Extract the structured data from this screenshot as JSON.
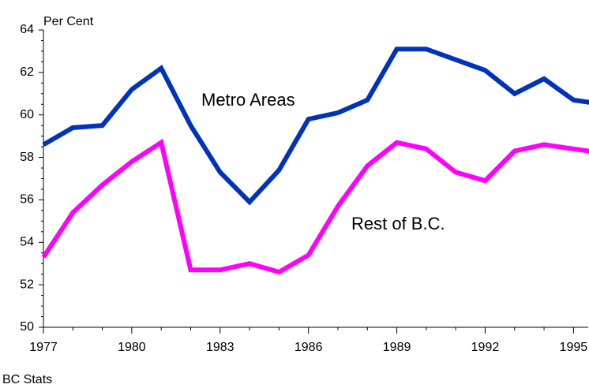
{
  "chart_data": {
    "type": "line",
    "y_label": "Per Cent",
    "source": "BC Stats",
    "x": [
      1977,
      1978,
      1979,
      1980,
      1981,
      1982,
      1983,
      1984,
      1985,
      1986,
      1987,
      1988,
      1989,
      1990,
      1991,
      1992,
      1993,
      1994,
      1995,
      1996
    ],
    "series": [
      {
        "name": "Metro Areas",
        "color": "#0033bb",
        "values": [
          58.6,
          59.4,
          59.5,
          61.2,
          62.2,
          59.5,
          57.3,
          55.9,
          57.4,
          59.8,
          60.1,
          60.7,
          63.1,
          63.1,
          62.6,
          62.1,
          61.0,
          61.7,
          60.7,
          60.5
        ]
      },
      {
        "name": "Rest of B.C.",
        "color": "#ff00ff",
        "values": [
          53.3,
          55.4,
          56.7,
          57.8,
          58.7,
          52.7,
          52.7,
          53.0,
          52.6,
          53.4,
          55.7,
          57.6,
          58.7,
          58.4,
          57.3,
          56.9,
          58.3,
          58.6,
          58.4,
          58.2
        ]
      }
    ],
    "xlim": [
      1977,
      1995.5
    ],
    "xticks": [
      1977,
      1980,
      1983,
      1986,
      1989,
      1992,
      1995
    ],
    "x_minor_ticks": [
      1978,
      1979,
      1981,
      1982,
      1984,
      1985,
      1987,
      1988,
      1990,
      1991,
      1993,
      1994
    ],
    "ylim": [
      50,
      64
    ],
    "yticks": [
      50,
      52,
      54,
      56,
      58,
      60,
      62,
      64
    ],
    "y_minor_ticks": [
      50.5,
      51,
      51.5,
      52.5,
      53,
      53.5,
      54.5,
      55,
      55.5,
      56.5,
      57,
      57.5,
      58.5,
      59,
      59.5,
      60.5,
      61,
      61.5,
      62.5,
      63,
      63.5
    ],
    "grid": false
  }
}
